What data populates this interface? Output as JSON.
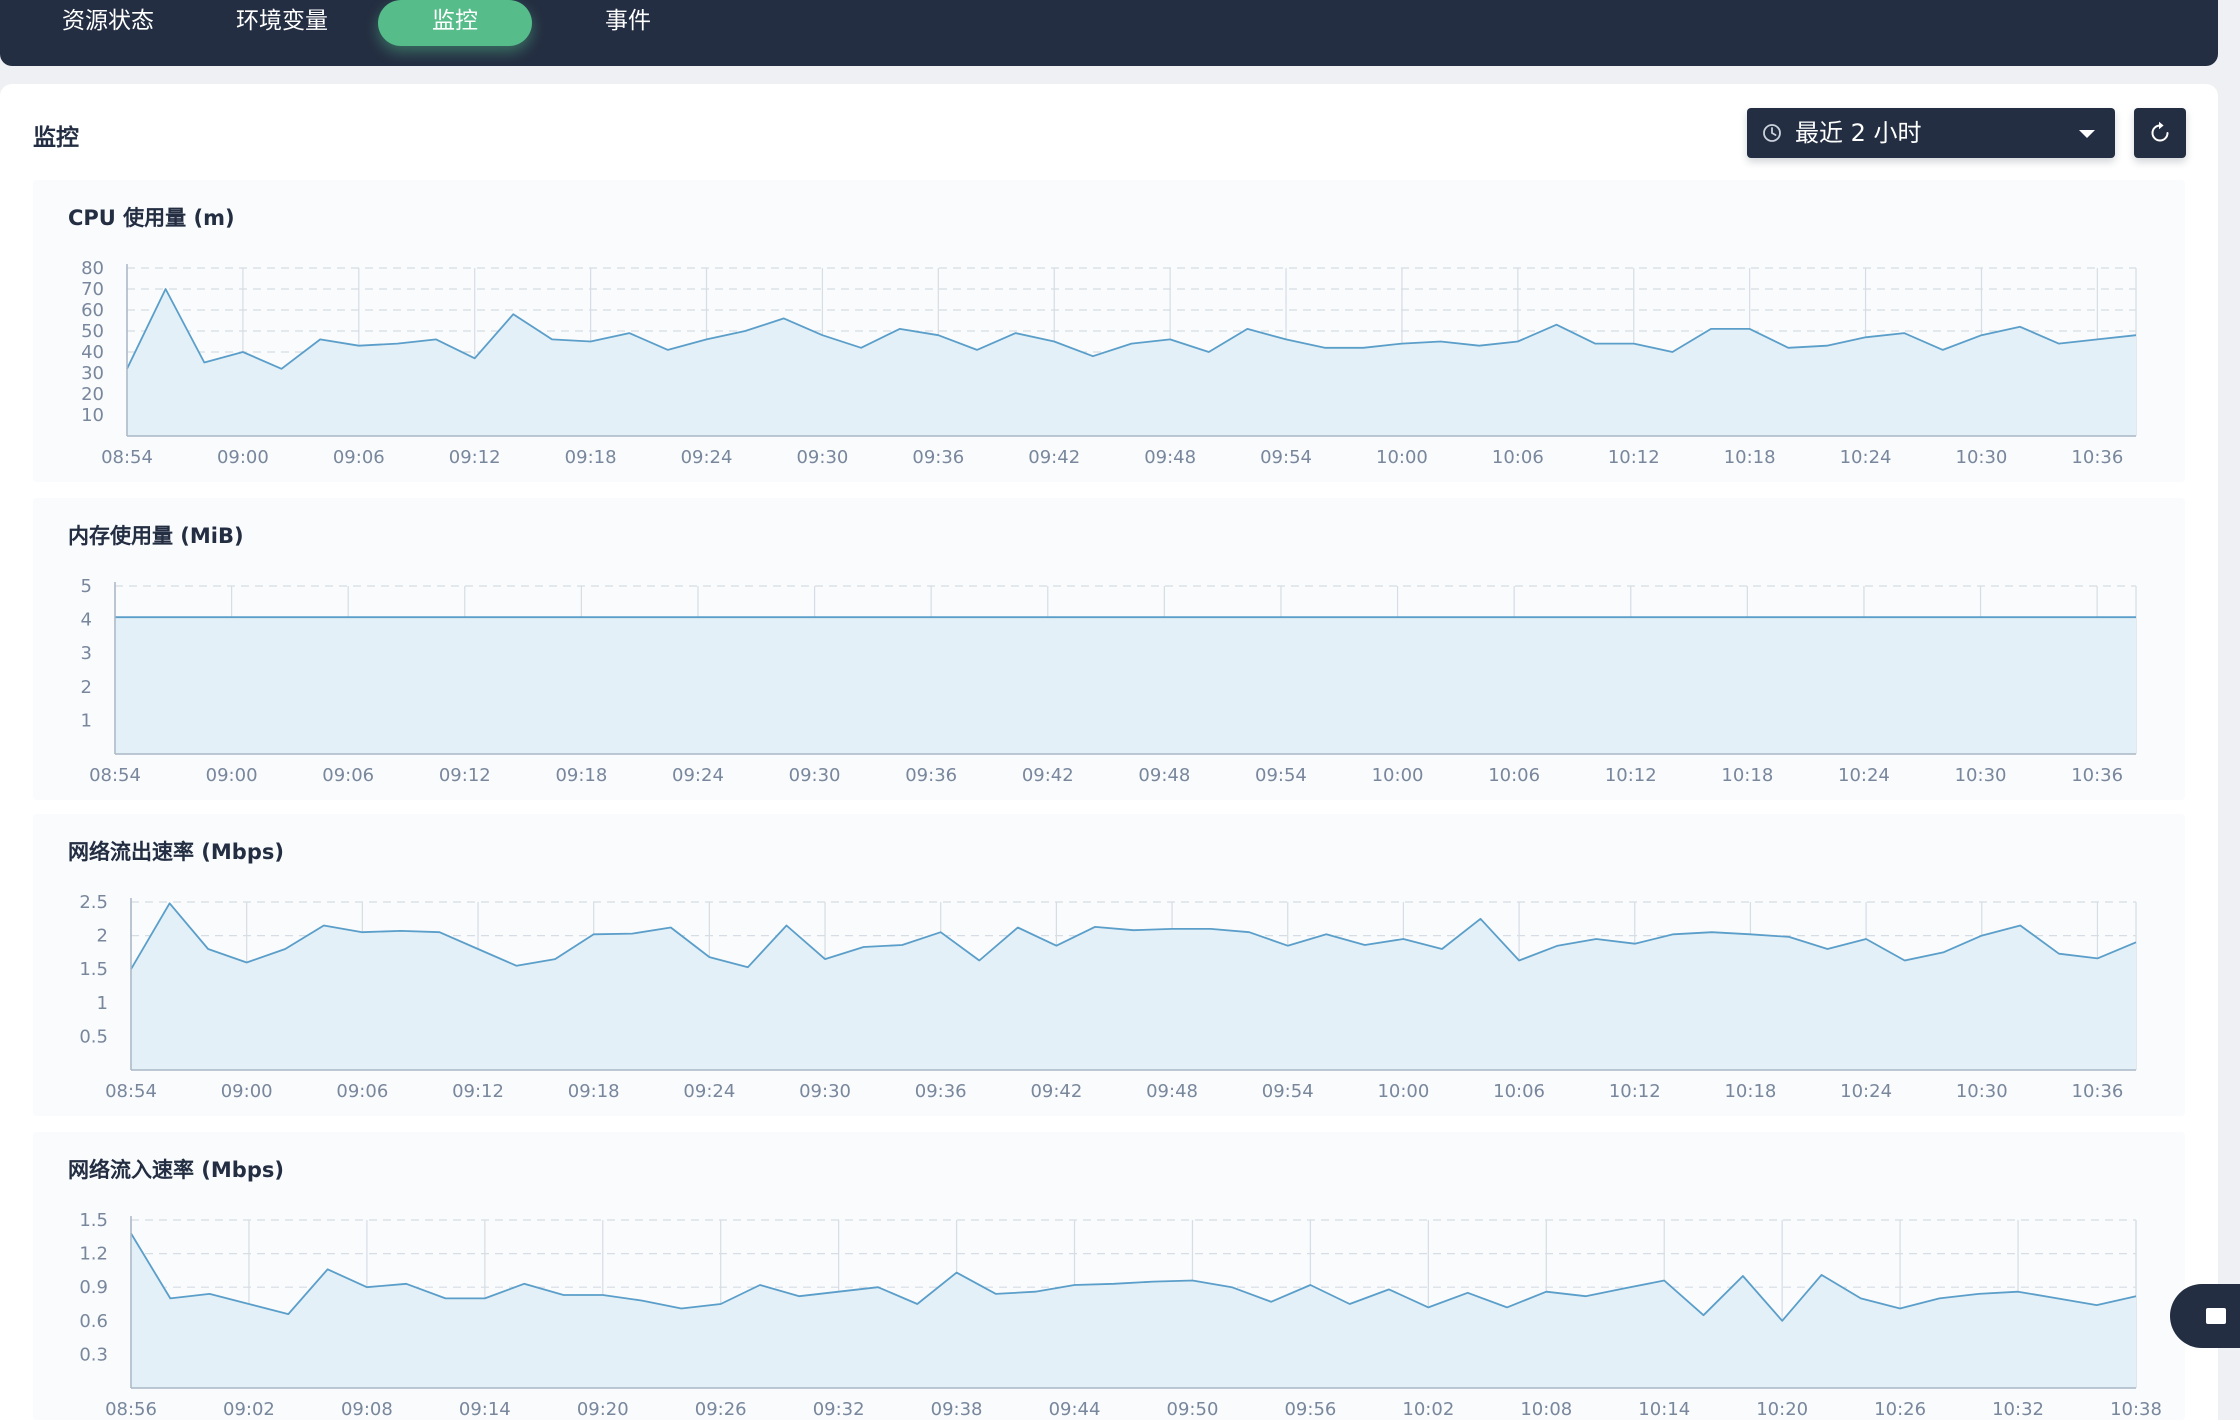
{
  "tabs": [
    {
      "label": "资源状态",
      "active": false
    },
    {
      "label": "环境变量",
      "active": false
    },
    {
      "label": "监控",
      "active": true
    },
    {
      "label": "事件",
      "active": false
    }
  ],
  "panel": {
    "title": "监控",
    "time_range": "最近 2 小时",
    "clock_icon": "clock-icon",
    "refresh_icon": "refresh-icon"
  },
  "colors": {
    "line": "#5a9ec9",
    "fill": "#e3f0f7",
    "grid": "#d6dde4",
    "accent": "#55bc8a",
    "dark": "#242e42"
  },
  "chart_data": [
    {
      "type": "area",
      "title": "CPU 使用量 (m)",
      "y_ticks": [
        "10",
        "20",
        "30",
        "40",
        "50",
        "60",
        "70",
        "80"
      ],
      "ylim": [
        0,
        80
      ],
      "x_labels": [
        "08:54",
        "09:00",
        "09:06",
        "09:12",
        "09:18",
        "09:24",
        "09:30",
        "09:36",
        "09:42",
        "09:48",
        "09:54",
        "10:00",
        "10:06",
        "10:12",
        "10:18",
        "10:24",
        "10:30",
        "10:36"
      ],
      "x_range": [
        "08:54",
        "10:38"
      ],
      "values": [
        32,
        70,
        35,
        40,
        32,
        46,
        43,
        44,
        46,
        37,
        58,
        46,
        45,
        49,
        41,
        46,
        50,
        56,
        48,
        42,
        51,
        48,
        41,
        49,
        45,
        38,
        44,
        46,
        40,
        51,
        46,
        42,
        42,
        44,
        45,
        43,
        45,
        53,
        44,
        44,
        40,
        51,
        51,
        42,
        43,
        47,
        49,
        41,
        48,
        52,
        44,
        46,
        48
      ]
    },
    {
      "type": "area",
      "title": "内存使用量 (MiB)",
      "y_ticks": [
        "1",
        "2",
        "3",
        "4",
        "5"
      ],
      "ylim": [
        0,
        5
      ],
      "x_labels": [
        "08:54",
        "09:00",
        "09:06",
        "09:12",
        "09:18",
        "09:24",
        "09:30",
        "09:36",
        "09:42",
        "09:48",
        "09:54",
        "10:00",
        "10:06",
        "10:12",
        "10:18",
        "10:24",
        "10:30",
        "10:36"
      ],
      "x_range": [
        "08:54",
        "10:38"
      ],
      "values": [
        4.07,
        4.07,
        4.07,
        4.07,
        4.07,
        4.07,
        4.07,
        4.07,
        4.07,
        4.07,
        4.07,
        4.07,
        4.07,
        4.07,
        4.07,
        4.07,
        4.07,
        4.07,
        4.07,
        4.07,
        4.07,
        4.07,
        4.07,
        4.07,
        4.07,
        4.07,
        4.07,
        4.07,
        4.07,
        4.07,
        4.07,
        4.07,
        4.07,
        4.07,
        4.07,
        4.07,
        4.07,
        4.07,
        4.07,
        4.07,
        4.07,
        4.07,
        4.07,
        4.07,
        4.07,
        4.07,
        4.07,
        4.07,
        4.07,
        4.07,
        4.07,
        4.07,
        4.07
      ]
    },
    {
      "type": "area",
      "title": "网络流出速率 (Mbps)",
      "y_ticks": [
        "0.5",
        "1",
        "1.5",
        "2",
        "2.5"
      ],
      "ylim": [
        0,
        2.5
      ],
      "x_labels": [
        "08:54",
        "09:00",
        "09:06",
        "09:12",
        "09:18",
        "09:24",
        "09:30",
        "09:36",
        "09:42",
        "09:48",
        "09:54",
        "10:00",
        "10:06",
        "10:12",
        "10:18",
        "10:24",
        "10:30",
        "10:36"
      ],
      "x_range": [
        "08:54",
        "10:38"
      ],
      "values": [
        1.5,
        2.48,
        1.8,
        1.6,
        1.8,
        2.15,
        2.05,
        2.07,
        2.05,
        1.8,
        1.55,
        1.65,
        2.02,
        2.03,
        2.12,
        1.68,
        1.53,
        2.15,
        1.65,
        1.83,
        1.86,
        2.05,
        1.63,
        2.12,
        1.85,
        2.13,
        2.08,
        2.1,
        2.1,
        2.05,
        1.85,
        2.02,
        1.86,
        1.95,
        1.8,
        2.25,
        1.63,
        1.85,
        1.95,
        1.88,
        2.02,
        2.05,
        2.02,
        1.98,
        1.8,
        1.95,
        1.63,
        1.75,
        2.0,
        2.15,
        1.73,
        1.66,
        1.9
      ]
    },
    {
      "type": "area",
      "title": "网络流入速率 (Mbps)",
      "y_ticks": [
        "0.3",
        "0.6",
        "0.9",
        "1.2",
        "1.5"
      ],
      "ylim": [
        0,
        1.5
      ],
      "x_labels": [
        "08:56",
        "09:02",
        "09:08",
        "09:14",
        "09:20",
        "09:26",
        "09:32",
        "09:38",
        "09:44",
        "09:50",
        "09:56",
        "10:02",
        "10:08",
        "10:14",
        "10:20",
        "10:26",
        "10:32",
        "10:38"
      ],
      "x_range": [
        "08:56",
        "10:38"
      ],
      "values": [
        1.38,
        0.8,
        0.84,
        0.75,
        0.66,
        1.06,
        0.9,
        0.93,
        0.8,
        0.8,
        0.93,
        0.83,
        0.83,
        0.78,
        0.71,
        0.75,
        0.92,
        0.82,
        0.86,
        0.9,
        0.75,
        1.03,
        0.84,
        0.86,
        0.92,
        0.93,
        0.95,
        0.96,
        0.9,
        0.77,
        0.92,
        0.75,
        0.88,
        0.72,
        0.85,
        0.72,
        0.86,
        0.82,
        0.89,
        0.96,
        0.65,
        1.0,
        0.6,
        1.01,
        0.8,
        0.71,
        0.8,
        0.84,
        0.86,
        0.8,
        0.74,
        0.82
      ]
    }
  ]
}
